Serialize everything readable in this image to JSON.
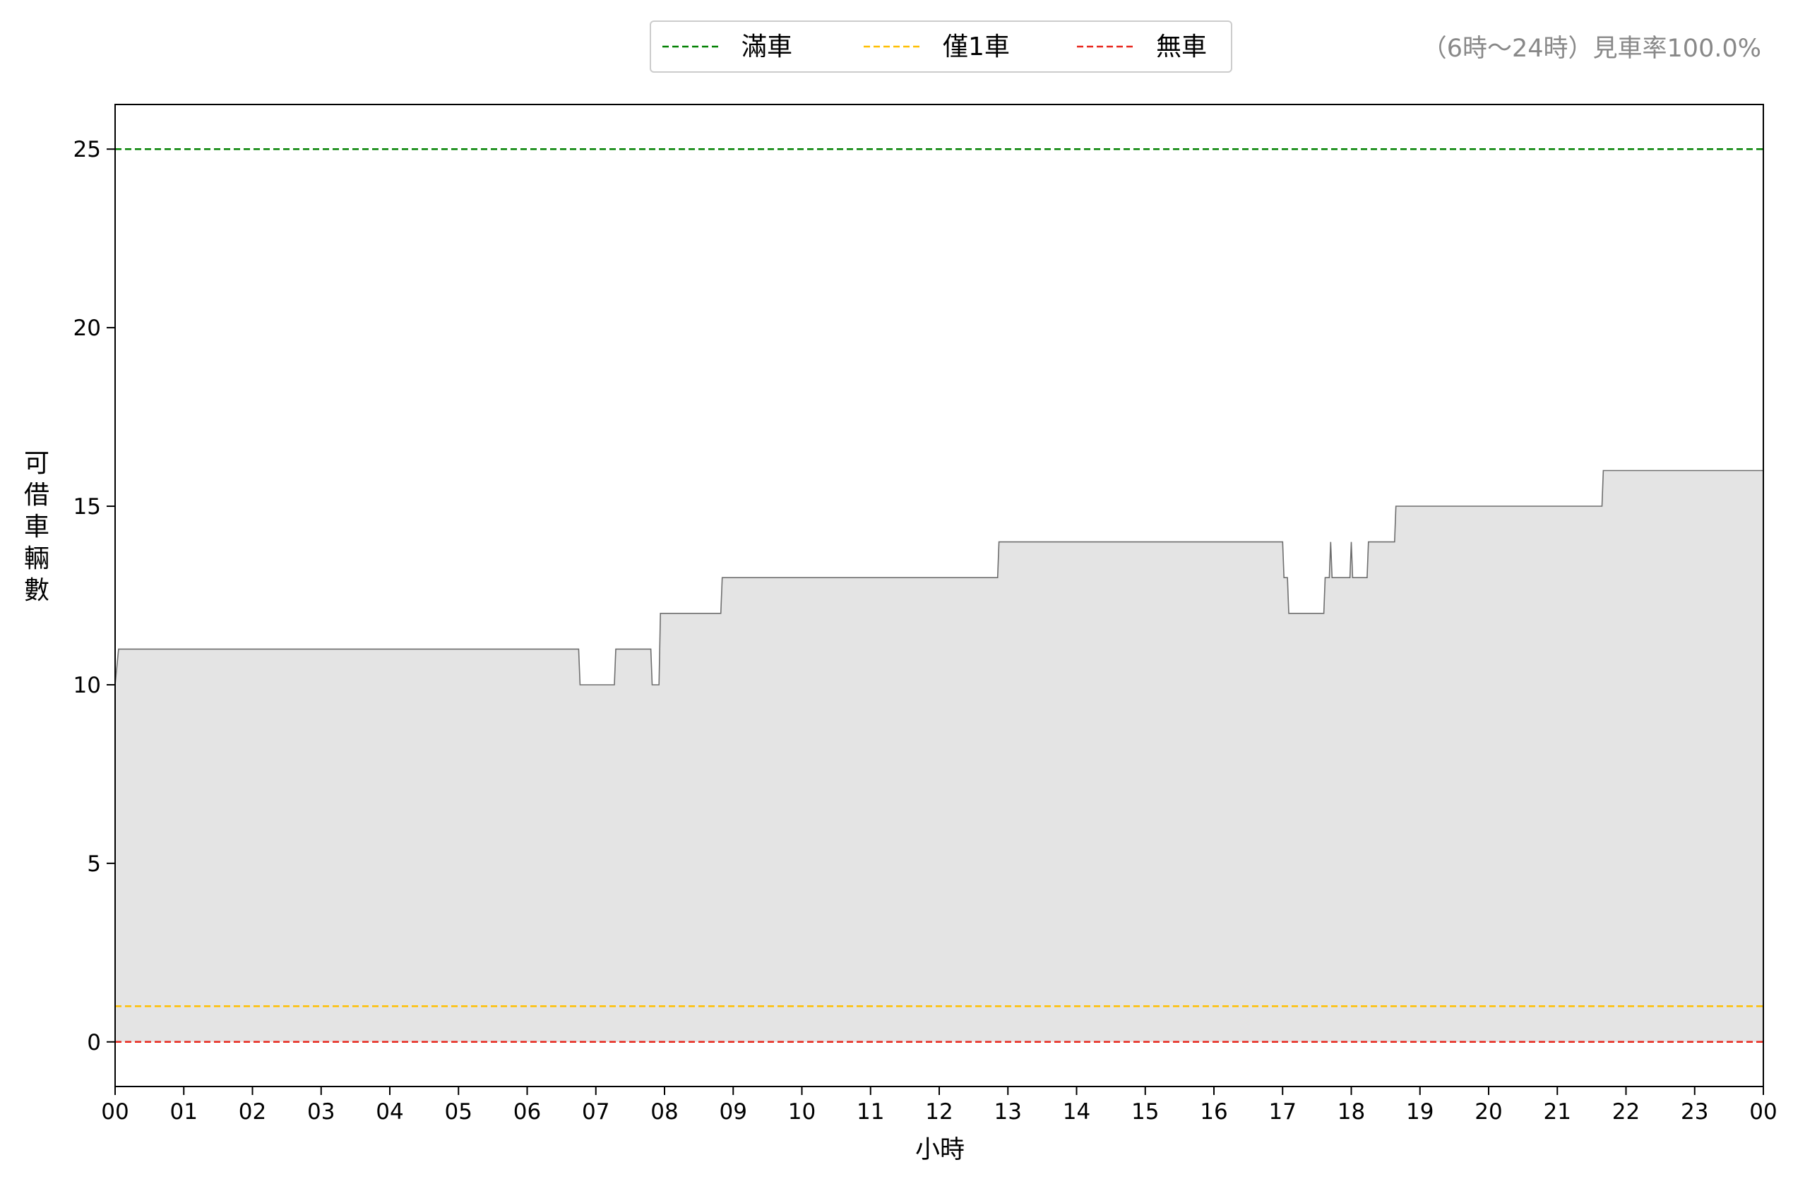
{
  "chart_data": {
    "type": "area",
    "xlabel": "小時",
    "ylabel": "可借車輛數",
    "annotation": "（6時～24時）見車率100.0%",
    "xlim": [
      0,
      24
    ],
    "ylim": [
      -1.25,
      26.25
    ],
    "x_ticks": [
      0,
      1,
      2,
      3,
      4,
      5,
      6,
      7,
      8,
      9,
      10,
      11,
      12,
      13,
      14,
      15,
      16,
      17,
      18,
      19,
      20,
      21,
      22,
      23,
      24
    ],
    "x_tick_labels": [
      "00",
      "01",
      "02",
      "03",
      "04",
      "05",
      "06",
      "07",
      "08",
      "09",
      "10",
      "11",
      "12",
      "13",
      "14",
      "15",
      "16",
      "17",
      "18",
      "19",
      "20",
      "21",
      "22",
      "23",
      "00"
    ],
    "y_ticks": [
      0,
      5,
      10,
      15,
      20,
      25
    ],
    "y_tick_labels": [
      "0",
      "5",
      "10",
      "15",
      "20",
      "25"
    ],
    "grid": false,
    "legend": {
      "placement": "top-center",
      "entries": [
        {
          "label": "滿車",
          "color": "#008000",
          "dashed": true
        },
        {
          "label": "僅1車",
          "color": "#ffbf00",
          "dashed": true
        },
        {
          "label": "無車",
          "color": "#e8251a",
          "dashed": true
        }
      ]
    },
    "reference_lines": [
      {
        "label": "滿車",
        "y": 25,
        "color": "#008000"
      },
      {
        "label": "僅1車",
        "y": 1,
        "color": "#ffbf00"
      },
      {
        "label": "無車",
        "y": 0,
        "color": "#e8251a"
      }
    ],
    "series": [
      {
        "color": "#6e6e6e",
        "fill": "#e4e4e4",
        "points": [
          [
            0.0,
            10
          ],
          [
            0.05,
            11
          ],
          [
            6.75,
            11
          ],
          [
            6.77,
            10
          ],
          [
            7.27,
            10
          ],
          [
            7.29,
            11
          ],
          [
            7.8,
            11
          ],
          [
            7.82,
            10
          ],
          [
            7.92,
            10
          ],
          [
            7.94,
            12
          ],
          [
            8.82,
            12
          ],
          [
            8.84,
            13
          ],
          [
            12.85,
            13
          ],
          [
            12.87,
            14
          ],
          [
            17.0,
            14
          ],
          [
            17.02,
            13
          ],
          [
            17.07,
            13
          ],
          [
            17.09,
            12
          ],
          [
            17.6,
            12
          ],
          [
            17.62,
            13
          ],
          [
            17.68,
            13
          ],
          [
            17.7,
            14
          ],
          [
            17.72,
            13
          ],
          [
            17.98,
            13
          ],
          [
            18.0,
            14
          ],
          [
            18.02,
            13
          ],
          [
            18.23,
            13
          ],
          [
            18.25,
            14
          ],
          [
            18.63,
            14
          ],
          [
            18.65,
            15
          ],
          [
            21.65,
            15
          ],
          [
            21.67,
            16
          ],
          [
            24.0,
            16
          ]
        ]
      }
    ]
  }
}
